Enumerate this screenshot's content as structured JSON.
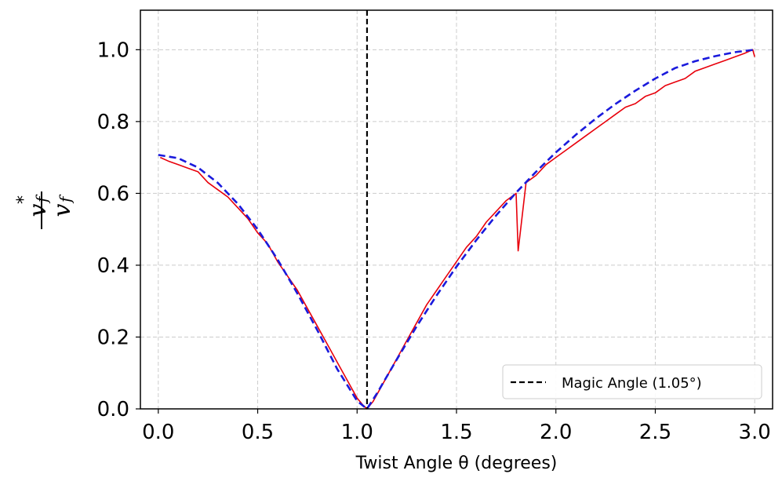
{
  "chart_data": {
    "type": "line",
    "xlabel": "Twist Angle θ (degrees)",
    "ylabel": {
      "numerator": "v",
      "numerator_sub": "f",
      "numerator_sup": "*",
      "denominator": "v",
      "denominator_sub": "f"
    },
    "xlim": [
      -0.09,
      3.09
    ],
    "ylim": [
      0.0,
      1.11
    ],
    "x_ticks": [
      "0.0",
      "0.5",
      "1.0",
      "1.5",
      "2.0",
      "2.5",
      "3.0"
    ],
    "y_ticks": [
      "0.0",
      "0.2",
      "0.4",
      "0.6",
      "0.8",
      "1.0"
    ],
    "grid": true,
    "legend_position": "lower-right",
    "legend": [
      "Magic Angle (1.05°)"
    ],
    "vline": {
      "x": 1.05,
      "style": "dashed",
      "color": "#000000"
    },
    "series": [
      {
        "style": "solid noisy",
        "color": "#e8000b",
        "x": [
          0.01,
          0.05,
          0.1,
          0.15,
          0.2,
          0.25,
          0.3,
          0.35,
          0.4,
          0.45,
          0.5,
          0.55,
          0.6,
          0.65,
          0.7,
          0.75,
          0.8,
          0.85,
          0.9,
          0.95,
          1.0,
          1.03,
          1.05,
          1.08,
          1.1,
          1.15,
          1.2,
          1.25,
          1.3,
          1.35,
          1.4,
          1.45,
          1.5,
          1.55,
          1.6,
          1.65,
          1.7,
          1.75,
          1.8,
          1.81,
          1.85,
          1.9,
          1.95,
          2.0,
          2.05,
          2.1,
          2.15,
          2.2,
          2.25,
          2.3,
          2.35,
          2.4,
          2.45,
          2.5,
          2.55,
          2.6,
          2.65,
          2.7,
          2.75,
          2.8,
          2.85,
          2.9,
          2.95,
          2.99,
          3.0
        ],
        "y": [
          0.7,
          0.69,
          0.68,
          0.67,
          0.66,
          0.63,
          0.61,
          0.59,
          0.56,
          0.53,
          0.49,
          0.46,
          0.41,
          0.37,
          0.33,
          0.28,
          0.23,
          0.18,
          0.13,
          0.08,
          0.03,
          0.01,
          0.0,
          0.02,
          0.04,
          0.09,
          0.14,
          0.19,
          0.24,
          0.29,
          0.33,
          0.37,
          0.41,
          0.45,
          0.48,
          0.52,
          0.55,
          0.58,
          0.6,
          0.44,
          0.63,
          0.65,
          0.68,
          0.7,
          0.72,
          0.74,
          0.76,
          0.78,
          0.8,
          0.82,
          0.84,
          0.85,
          0.87,
          0.88,
          0.9,
          0.91,
          0.92,
          0.94,
          0.95,
          0.96,
          0.97,
          0.98,
          0.99,
          1.0,
          0.98
        ]
      },
      {
        "style": "dashed",
        "color": "#1a1adc",
        "x": [
          0.0,
          0.1,
          0.2,
          0.3,
          0.4,
          0.5,
          0.6,
          0.7,
          0.8,
          0.9,
          1.0,
          1.05,
          1.1,
          1.2,
          1.3,
          1.4,
          1.5,
          1.6,
          1.7,
          1.8,
          1.9,
          2.0,
          2.1,
          2.2,
          2.3,
          2.4,
          2.5,
          2.6,
          2.7,
          2.8,
          2.9,
          3.0
        ],
        "y": [
          0.707,
          0.698,
          0.672,
          0.629,
          0.571,
          0.5,
          0.416,
          0.321,
          0.219,
          0.111,
          0.022,
          0.0,
          0.043,
          0.138,
          0.23,
          0.316,
          0.396,
          0.47,
          0.539,
          0.602,
          0.66,
          0.714,
          0.763,
          0.808,
          0.849,
          0.886,
          0.92,
          0.949,
          0.968,
          0.982,
          0.993,
          1.0
        ]
      }
    ]
  }
}
